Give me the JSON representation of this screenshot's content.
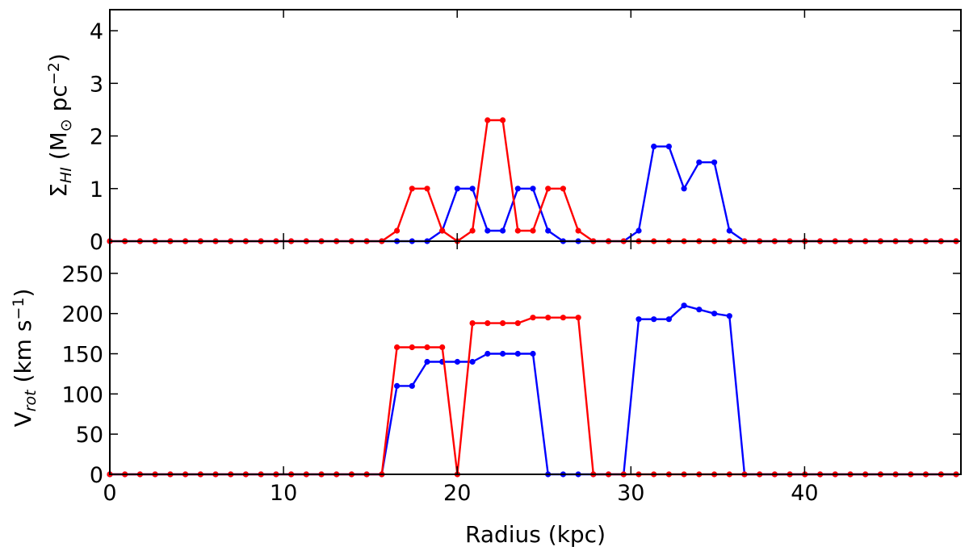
{
  "chart_data": [
    {
      "type": "line",
      "panel": "top",
      "title": "",
      "xlabel": "",
      "ylabel_parts": [
        "Σ",
        "HI",
        " (M",
        "⊙",
        " pc",
        "−2",
        ")"
      ],
      "xlim": [
        0,
        49
      ],
      "ylim": [
        0,
        4.4
      ],
      "xticks": [
        0,
        10,
        20,
        30,
        40
      ],
      "yticks": [
        0,
        1,
        2,
        3,
        4
      ],
      "grid": false,
      "legend": null,
      "series": [
        {
          "name": "blue",
          "color": "#0000ff",
          "x": [
            0,
            0.87,
            1.74,
            2.61,
            3.48,
            4.35,
            5.22,
            6.09,
            6.96,
            7.83,
            8.7,
            9.57,
            10.44,
            11.31,
            12.18,
            13.05,
            13.92,
            14.79,
            15.66,
            16.53,
            17.4,
            18.27,
            19.14,
            20.01,
            20.88,
            21.75,
            22.62,
            23.49,
            24.36,
            25.23,
            26.1,
            26.97,
            27.84,
            28.71,
            29.58,
            30.45,
            31.32,
            32.19,
            33.06,
            33.93,
            34.8,
            35.67,
            36.54,
            37.41,
            38.28,
            39.15,
            40.02,
            40.89,
            41.76,
            42.63,
            43.5,
            44.37,
            45.24,
            46.11,
            46.98,
            47.85,
            48.72
          ],
          "y": [
            0,
            0,
            0,
            0,
            0,
            0,
            0,
            0,
            0,
            0,
            0,
            0,
            0,
            0,
            0,
            0,
            0,
            0,
            0,
            0,
            0,
            0,
            0.2,
            1.0,
            1.0,
            0.2,
            0.2,
            1.0,
            1.0,
            0.2,
            0,
            0,
            0,
            0,
            0,
            0.2,
            1.8,
            1.8,
            1.0,
            1.5,
            1.5,
            0.2,
            0,
            0,
            0,
            0,
            0,
            0,
            0,
            0,
            0,
            0,
            0,
            0,
            0,
            0,
            0
          ]
        },
        {
          "name": "red",
          "color": "#ff0000",
          "x": [
            0,
            0.87,
            1.74,
            2.61,
            3.48,
            4.35,
            5.22,
            6.09,
            6.96,
            7.83,
            8.7,
            9.57,
            10.44,
            11.31,
            12.18,
            13.05,
            13.92,
            14.79,
            15.66,
            16.53,
            17.4,
            18.27,
            19.14,
            20.01,
            20.88,
            21.75,
            22.62,
            23.49,
            24.36,
            25.23,
            26.1,
            26.97,
            27.84,
            28.71,
            29.58,
            30.45,
            31.32,
            32.19,
            33.06,
            33.93,
            34.8,
            35.67,
            36.54,
            37.41,
            38.28,
            39.15,
            40.02,
            40.89,
            41.76,
            42.63,
            43.5,
            44.37,
            45.24,
            46.11,
            46.98,
            47.85,
            48.72
          ],
          "y": [
            0,
            0,
            0,
            0,
            0,
            0,
            0,
            0,
            0,
            0,
            0,
            0,
            0,
            0,
            0,
            0,
            0,
            0,
            0,
            0.2,
            1.0,
            1.0,
            0.2,
            0,
            0.2,
            2.3,
            2.3,
            0.2,
            0.2,
            1.0,
            1.0,
            0.2,
            0,
            0,
            0,
            0,
            0,
            0,
            0,
            0,
            0,
            0,
            0,
            0,
            0,
            0,
            0,
            0,
            0,
            0,
            0,
            0,
            0,
            0,
            0,
            0,
            0
          ]
        }
      ]
    },
    {
      "type": "line",
      "panel": "bottom",
      "title": "",
      "xlabel": "Radius (kpc)",
      "ylabel_parts": [
        "V",
        "rot",
        " (km s",
        "−1",
        ")"
      ],
      "xlim": [
        0,
        49
      ],
      "ylim": [
        0,
        290
      ],
      "xticks": [
        0,
        10,
        20,
        30,
        40
      ],
      "yticks": [
        0,
        50,
        100,
        150,
        200,
        250
      ],
      "grid": false,
      "legend": null,
      "series": [
        {
          "name": "blue",
          "color": "#0000ff",
          "x": [
            0,
            0.87,
            1.74,
            2.61,
            3.48,
            4.35,
            5.22,
            6.09,
            6.96,
            7.83,
            8.7,
            9.57,
            10.44,
            11.31,
            12.18,
            13.05,
            13.92,
            14.79,
            15.66,
            16.53,
            17.4,
            18.27,
            19.14,
            20.01,
            20.88,
            21.75,
            22.62,
            23.49,
            24.36,
            25.23,
            26.1,
            26.97,
            27.84,
            28.71,
            29.58,
            30.45,
            31.32,
            32.19,
            33.06,
            33.93,
            34.8,
            35.67,
            36.54,
            37.41,
            38.28,
            39.15,
            40.02,
            40.89,
            41.76,
            42.63,
            43.5,
            44.37,
            45.24,
            46.11,
            46.98,
            47.85,
            48.72
          ],
          "y": [
            0,
            0,
            0,
            0,
            0,
            0,
            0,
            0,
            0,
            0,
            0,
            0,
            0,
            0,
            0,
            0,
            0,
            0,
            0,
            110,
            110,
            140,
            140,
            140,
            140,
            150,
            150,
            150,
            150,
            0,
            0,
            0,
            0,
            0,
            0,
            193,
            193,
            193,
            210,
            205,
            200,
            197,
            0,
            0,
            0,
            0,
            0,
            0,
            0,
            0,
            0,
            0,
            0,
            0,
            0,
            0,
            0
          ]
        },
        {
          "name": "red",
          "color": "#ff0000",
          "x": [
            0,
            0.87,
            1.74,
            2.61,
            3.48,
            4.35,
            5.22,
            6.09,
            6.96,
            7.83,
            8.7,
            9.57,
            10.44,
            11.31,
            12.18,
            13.05,
            13.92,
            14.79,
            15.66,
            16.53,
            17.4,
            18.27,
            19.14,
            20.01,
            20.88,
            21.75,
            22.62,
            23.49,
            24.36,
            25.23,
            26.1,
            26.97,
            27.84,
            28.71,
            29.58,
            30.45,
            31.32,
            32.19,
            33.06,
            33.93,
            34.8,
            35.67,
            36.54,
            37.41,
            38.28,
            39.15,
            40.02,
            40.89,
            41.76,
            42.63,
            43.5,
            44.37,
            45.24,
            46.11,
            46.98,
            47.85,
            48.72
          ],
          "y": [
            0,
            0,
            0,
            0,
            0,
            0,
            0,
            0,
            0,
            0,
            0,
            0,
            0,
            0,
            0,
            0,
            0,
            0,
            0,
            158,
            158,
            158,
            158,
            0,
            188,
            188,
            188,
            188,
            195,
            195,
            195,
            195,
            0,
            0,
            0,
            0,
            0,
            0,
            0,
            0,
            0,
            0,
            0,
            0,
            0,
            0,
            0,
            0,
            0,
            0,
            0,
            0,
            0,
            0,
            0,
            0,
            0
          ]
        }
      ]
    }
  ]
}
